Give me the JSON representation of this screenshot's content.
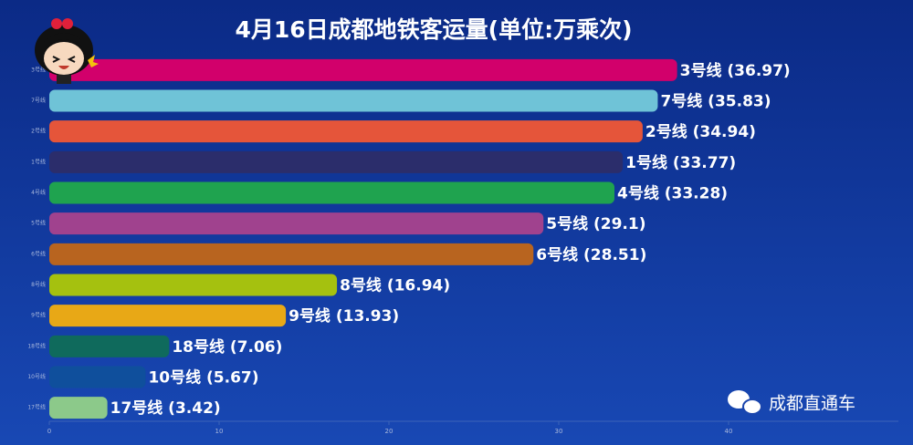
{
  "chart_data": {
    "type": "bar",
    "orientation": "horizontal",
    "title": "4月16日成都地铁客运量(单位:万乘次)",
    "categories": [
      "3号线",
      "7号线",
      "2号线",
      "1号线",
      "4号线",
      "5号线",
      "6号线",
      "8号线",
      "9号线",
      "18号线",
      "10号线",
      "17号线"
    ],
    "values": [
      36.97,
      35.83,
      34.94,
      33.77,
      33.28,
      29.1,
      28.51,
      16.94,
      13.93,
      7.06,
      5.67,
      3.42
    ],
    "value_labels": [
      "3号线 (36.97)",
      "7号线 (35.83)",
      "2号线 (34.94)",
      "1号线 (33.77)",
      "4号线 (33.28)",
      "5号线 (29.1)",
      "6号线 (28.51)",
      "8号线 (16.94)",
      "9号线 (13.93)",
      "18号线 (7.06)",
      "10号线 (5.67)",
      "17号线 (3.42)"
    ],
    "colors": [
      "#d2006b",
      "#6fc3d7",
      "#e5553a",
      "#2b2d6b",
      "#1fa34f",
      "#a0428e",
      "#b8641f",
      "#a5c10f",
      "#e8a816",
      "#0f6a5c",
      "#0f4f9c",
      "#8cc98a"
    ],
    "xlim": [
      0,
      50
    ],
    "xticks": [
      0,
      10,
      20,
      30,
      40
    ],
    "watermark": "成都直通车"
  }
}
